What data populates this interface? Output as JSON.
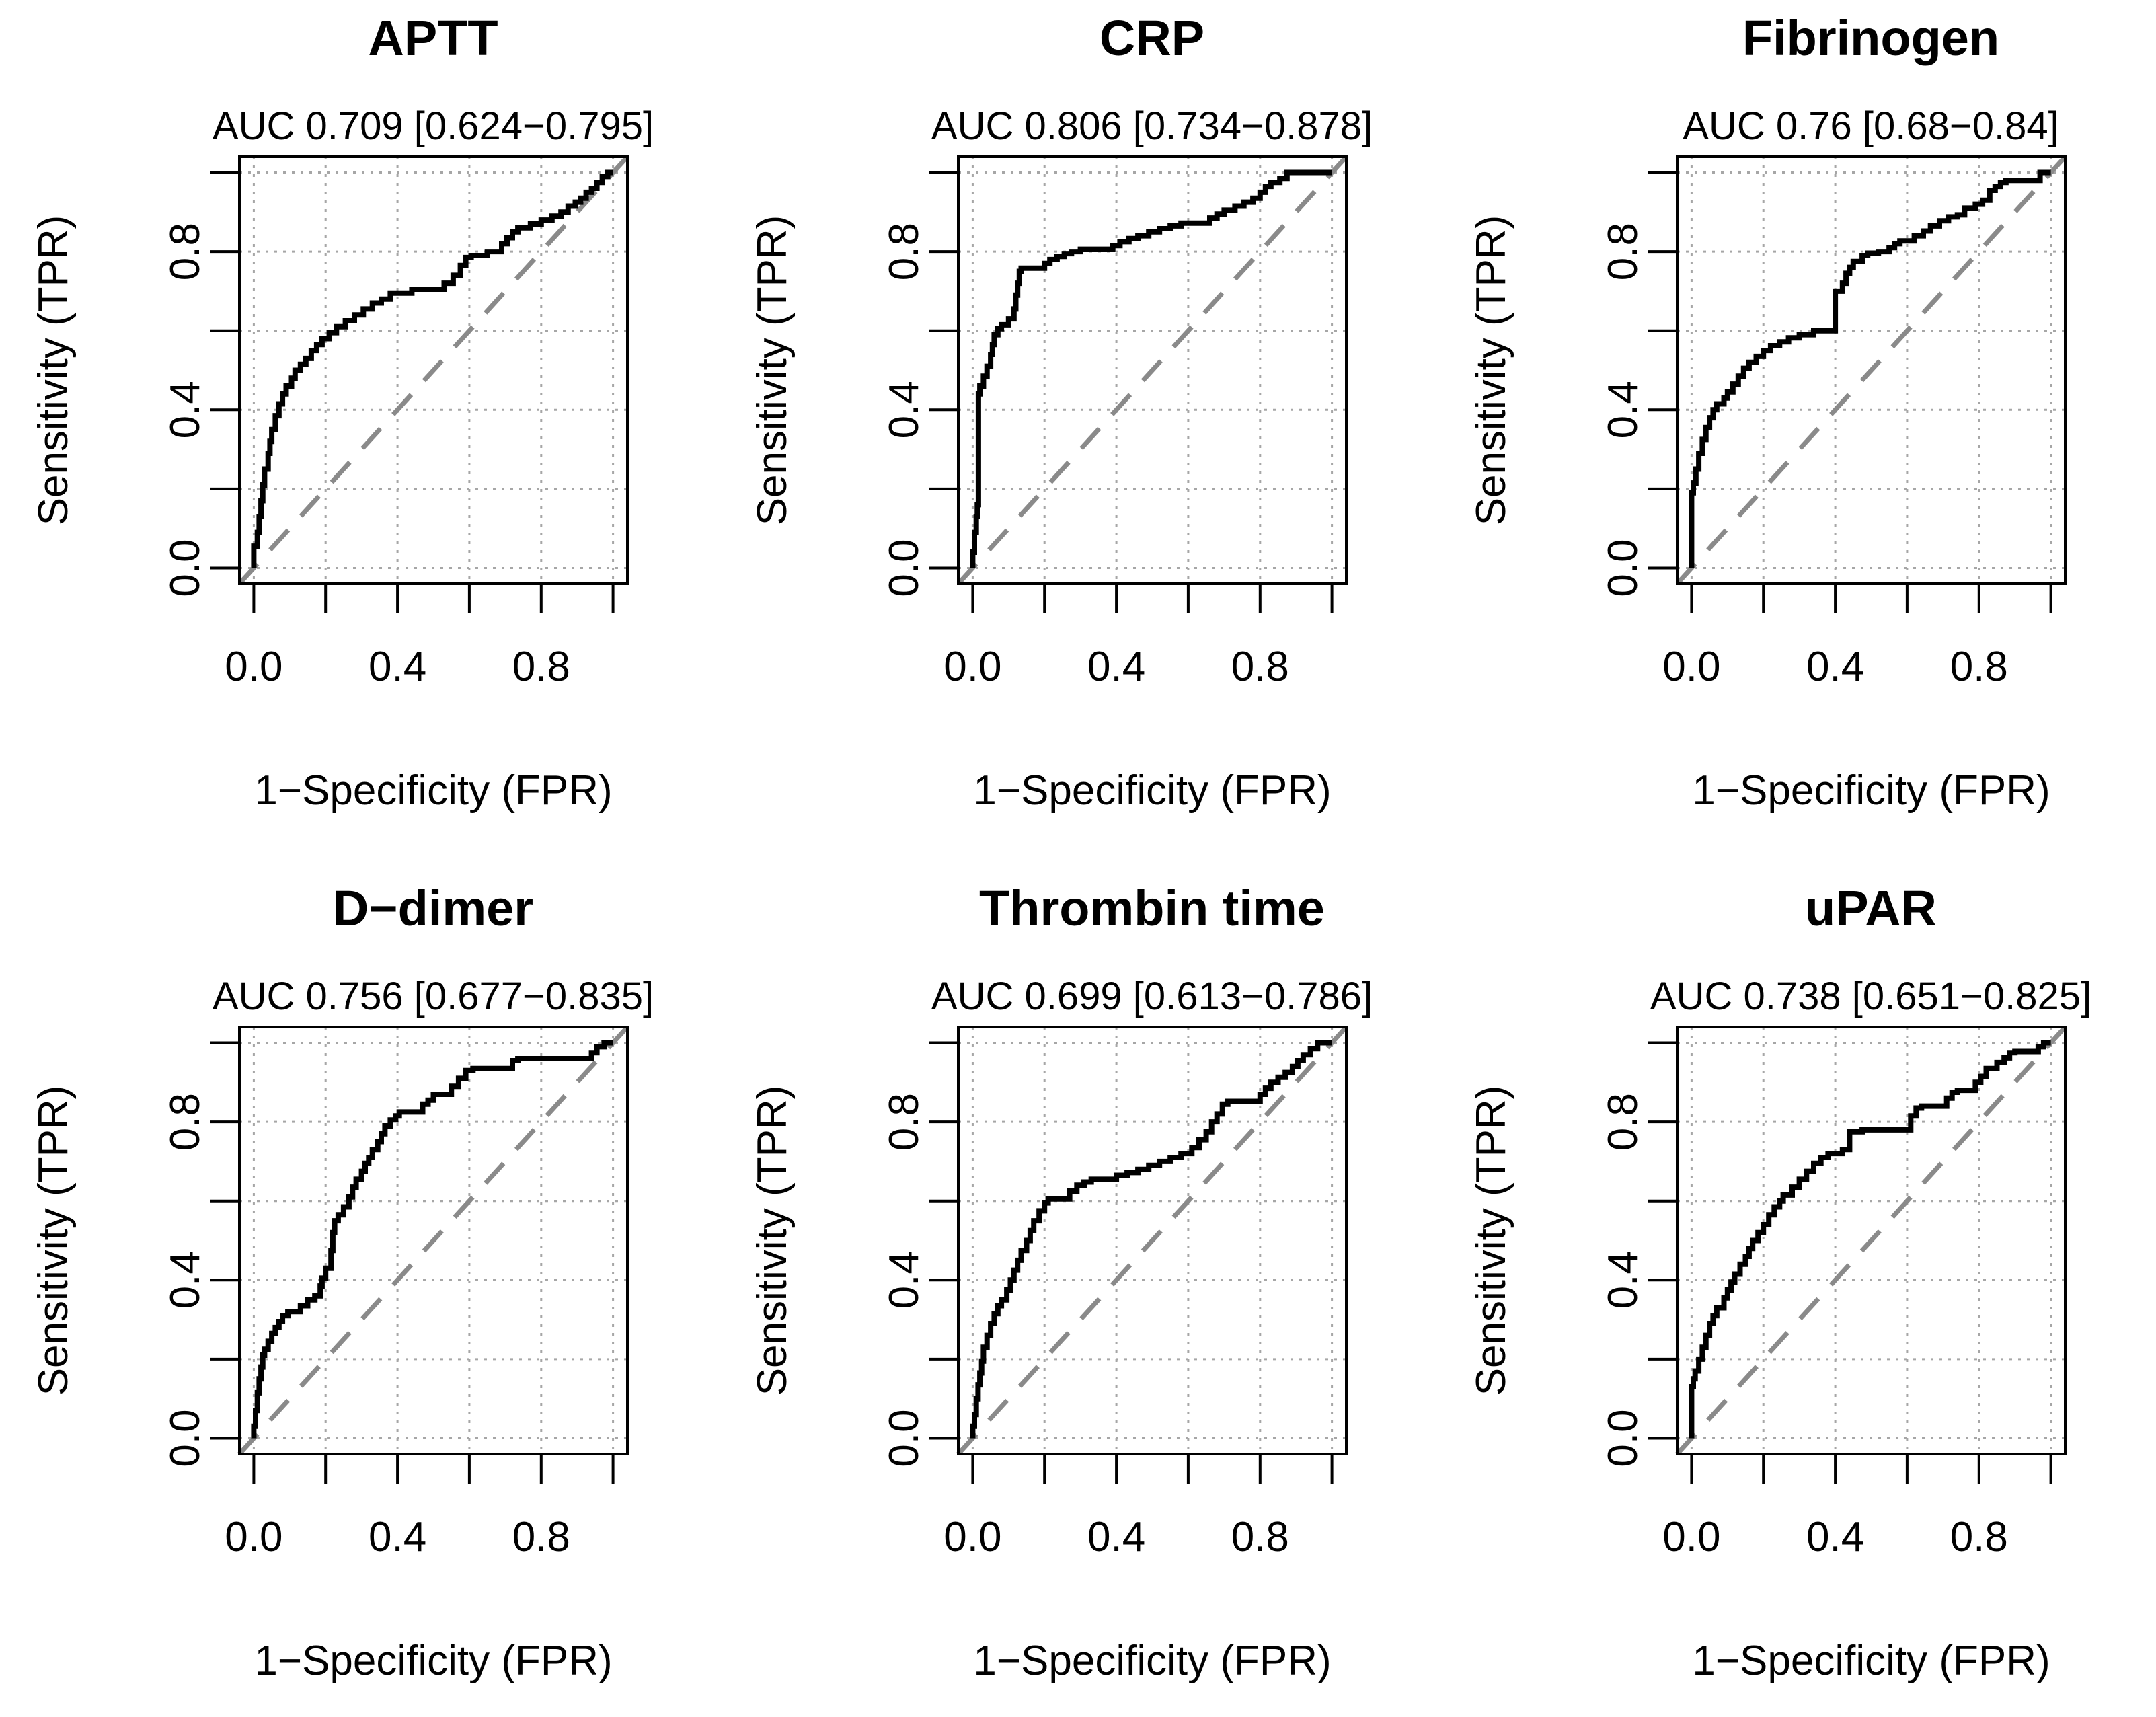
{
  "figure": {
    "background": "#ffffff",
    "rows": 2,
    "cols": 3
  },
  "colors": {
    "curve": "#000000",
    "diagonal": "#8a8a8a",
    "grid": "#a6a6a6",
    "text": "#000000"
  },
  "chart_data": [
    {
      "type": "line",
      "title": "APTT",
      "subtitle": "AUC 0.709 [0.624−0.795]",
      "auc": 0.709,
      "ci": [
        0.624,
        0.795
      ],
      "xlabel": "1−Specificity (FPR)",
      "ylabel": "Sensitivity (TPR)",
      "xlim": [
        0,
        1
      ],
      "ylim": [
        0,
        1
      ],
      "ticks": [
        0,
        0.2,
        0.4,
        0.6,
        0.8,
        1
      ],
      "tick_labels": {
        "values": [
          0,
          0.4,
          0.8
        ],
        "labels": [
          "0.0",
          "0.4",
          "0.8"
        ]
      },
      "grid": "dotted",
      "diagonal": "dashed",
      "roc": [
        [
          0,
          0
        ],
        [
          0.01,
          0.055
        ],
        [
          0.015,
          0.09
        ],
        [
          0.02,
          0.13
        ],
        [
          0.025,
          0.17
        ],
        [
          0.03,
          0.21
        ],
        [
          0.04,
          0.25
        ],
        [
          0.045,
          0.29
        ],
        [
          0.05,
          0.32
        ],
        [
          0.06,
          0.35
        ],
        [
          0.07,
          0.385
        ],
        [
          0.08,
          0.415
        ],
        [
          0.09,
          0.44
        ],
        [
          0.105,
          0.46
        ],
        [
          0.115,
          0.48
        ],
        [
          0.13,
          0.5
        ],
        [
          0.145,
          0.515
        ],
        [
          0.16,
          0.53
        ],
        [
          0.175,
          0.55
        ],
        [
          0.19,
          0.565
        ],
        [
          0.21,
          0.58
        ],
        [
          0.23,
          0.595
        ],
        [
          0.255,
          0.61
        ],
        [
          0.28,
          0.625
        ],
        [
          0.305,
          0.64
        ],
        [
          0.33,
          0.655
        ],
        [
          0.355,
          0.67
        ],
        [
          0.38,
          0.68
        ],
        [
          0.44,
          0.695
        ],
        [
          0.53,
          0.705
        ],
        [
          0.555,
          0.72
        ],
        [
          0.575,
          0.74
        ],
        [
          0.59,
          0.765
        ],
        [
          0.605,
          0.785
        ],
        [
          0.65,
          0.79
        ],
        [
          0.69,
          0.8
        ],
        [
          0.705,
          0.82
        ],
        [
          0.72,
          0.835
        ],
        [
          0.735,
          0.85
        ],
        [
          0.77,
          0.86
        ],
        [
          0.8,
          0.87
        ],
        [
          0.83,
          0.88
        ],
        [
          0.855,
          0.89
        ],
        [
          0.875,
          0.9
        ],
        [
          0.895,
          0.915
        ],
        [
          0.91,
          0.925
        ],
        [
          0.925,
          0.935
        ],
        [
          0.94,
          0.95
        ],
        [
          0.955,
          0.96
        ],
        [
          0.97,
          0.975
        ],
        [
          0.985,
          0.99
        ],
        [
          1,
          1
        ]
      ]
    },
    {
      "type": "line",
      "title": "CRP",
      "subtitle": "AUC 0.806 [0.734−0.878]",
      "auc": 0.806,
      "ci": [
        0.734,
        0.878
      ],
      "xlabel": "1−Specificity (FPR)",
      "ylabel": "Sensitivity (TPR)",
      "xlim": [
        0,
        1
      ],
      "ylim": [
        0,
        1
      ],
      "ticks": [
        0,
        0.2,
        0.4,
        0.6,
        0.8,
        1
      ],
      "tick_labels": {
        "values": [
          0,
          0.4,
          0.8
        ],
        "labels": [
          "0.0",
          "0.4",
          "0.8"
        ]
      },
      "grid": "dotted",
      "diagonal": "dashed",
      "roc": [
        [
          0,
          0
        ],
        [
          0.005,
          0.04
        ],
        [
          0.01,
          0.09
        ],
        [
          0.013,
          0.13
        ],
        [
          0.016,
          0.16
        ],
        [
          0.02,
          0.44
        ],
        [
          0.03,
          0.46
        ],
        [
          0.04,
          0.485
        ],
        [
          0.05,
          0.51
        ],
        [
          0.055,
          0.54
        ],
        [
          0.06,
          0.565
        ],
        [
          0.07,
          0.59
        ],
        [
          0.08,
          0.605
        ],
        [
          0.1,
          0.615
        ],
        [
          0.115,
          0.63
        ],
        [
          0.12,
          0.655
        ],
        [
          0.125,
          0.69
        ],
        [
          0.13,
          0.72
        ],
        [
          0.135,
          0.75
        ],
        [
          0.2,
          0.758
        ],
        [
          0.215,
          0.77
        ],
        [
          0.235,
          0.78
        ],
        [
          0.255,
          0.788
        ],
        [
          0.275,
          0.795
        ],
        [
          0.3,
          0.8
        ],
        [
          0.39,
          0.806
        ],
        [
          0.41,
          0.815
        ],
        [
          0.435,
          0.825
        ],
        [
          0.46,
          0.833
        ],
        [
          0.49,
          0.84
        ],
        [
          0.52,
          0.85
        ],
        [
          0.55,
          0.858
        ],
        [
          0.58,
          0.865
        ],
        [
          0.66,
          0.872
        ],
        [
          0.68,
          0.885
        ],
        [
          0.7,
          0.895
        ],
        [
          0.73,
          0.905
        ],
        [
          0.755,
          0.915
        ],
        [
          0.78,
          0.925
        ],
        [
          0.8,
          0.935
        ],
        [
          0.815,
          0.95
        ],
        [
          0.83,
          0.965
        ],
        [
          0.855,
          0.975
        ],
        [
          0.875,
          0.985
        ],
        [
          0.9,
          1
        ],
        [
          1,
          1
        ]
      ]
    },
    {
      "type": "line",
      "title": "Fibrinogen",
      "subtitle": "AUC 0.76 [0.68−0.84]",
      "auc": 0.76,
      "ci": [
        0.68,
        0.84
      ],
      "xlabel": "1−Specificity (FPR)",
      "ylabel": "Sensitivity (TPR)",
      "xlim": [
        0,
        1
      ],
      "ylim": [
        0,
        1
      ],
      "ticks": [
        0,
        0.2,
        0.4,
        0.6,
        0.8,
        1
      ],
      "tick_labels": {
        "values": [
          0,
          0.4,
          0.8
        ],
        "labels": [
          "0.0",
          "0.4",
          "0.8"
        ]
      },
      "grid": "dotted",
      "diagonal": "dashed",
      "roc": [
        [
          0,
          0
        ],
        [
          0.005,
          0.19
        ],
        [
          0.012,
          0.215
        ],
        [
          0.02,
          0.25
        ],
        [
          0.03,
          0.29
        ],
        [
          0.04,
          0.325
        ],
        [
          0.05,
          0.355
        ],
        [
          0.06,
          0.38
        ],
        [
          0.07,
          0.4
        ],
        [
          0.09,
          0.415
        ],
        [
          0.1,
          0.43
        ],
        [
          0.115,
          0.445
        ],
        [
          0.13,
          0.465
        ],
        [
          0.145,
          0.485
        ],
        [
          0.16,
          0.505
        ],
        [
          0.18,
          0.52
        ],
        [
          0.2,
          0.535
        ],
        [
          0.22,
          0.55
        ],
        [
          0.245,
          0.562
        ],
        [
          0.27,
          0.572
        ],
        [
          0.3,
          0.582
        ],
        [
          0.34,
          0.59
        ],
        [
          0.4,
          0.6
        ],
        [
          0.42,
          0.7
        ],
        [
          0.43,
          0.72
        ],
        [
          0.44,
          0.745
        ],
        [
          0.45,
          0.76
        ],
        [
          0.475,
          0.775
        ],
        [
          0.49,
          0.79
        ],
        [
          0.52,
          0.796
        ],
        [
          0.55,
          0.8
        ],
        [
          0.565,
          0.81
        ],
        [
          0.58,
          0.82
        ],
        [
          0.62,
          0.827
        ],
        [
          0.645,
          0.84
        ],
        [
          0.665,
          0.852
        ],
        [
          0.69,
          0.865
        ],
        [
          0.715,
          0.878
        ],
        [
          0.74,
          0.888
        ],
        [
          0.76,
          0.893
        ],
        [
          0.79,
          0.91
        ],
        [
          0.81,
          0.92
        ],
        [
          0.83,
          0.93
        ],
        [
          0.845,
          0.955
        ],
        [
          0.86,
          0.965
        ],
        [
          0.875,
          0.975
        ],
        [
          0.97,
          0.98
        ],
        [
          0.985,
          1
        ],
        [
          1,
          1
        ]
      ]
    },
    {
      "type": "line",
      "title": "D−dimer",
      "subtitle": "AUC 0.756 [0.677−0.835]",
      "auc": 0.756,
      "ci": [
        0.677,
        0.835
      ],
      "xlabel": "1−Specificity (FPR)",
      "ylabel": "Sensitivity (TPR)",
      "xlim": [
        0,
        1
      ],
      "ylim": [
        0,
        1
      ],
      "ticks": [
        0,
        0.2,
        0.4,
        0.6,
        0.8,
        1
      ],
      "tick_labels": {
        "values": [
          0,
          0.4,
          0.8
        ],
        "labels": [
          "0.0",
          "0.4",
          "0.8"
        ]
      },
      "grid": "dotted",
      "diagonal": "dashed",
      "roc": [
        [
          0,
          0
        ],
        [
          0.005,
          0.03
        ],
        [
          0.01,
          0.07
        ],
        [
          0.015,
          0.115
        ],
        [
          0.02,
          0.15
        ],
        [
          0.025,
          0.18
        ],
        [
          0.03,
          0.21
        ],
        [
          0.04,
          0.225
        ],
        [
          0.05,
          0.245
        ],
        [
          0.06,
          0.265
        ],
        [
          0.07,
          0.28
        ],
        [
          0.08,
          0.295
        ],
        [
          0.095,
          0.31
        ],
        [
          0.13,
          0.32
        ],
        [
          0.15,
          0.335
        ],
        [
          0.17,
          0.35
        ],
        [
          0.185,
          0.36
        ],
        [
          0.19,
          0.385
        ],
        [
          0.2,
          0.405
        ],
        [
          0.215,
          0.43
        ],
        [
          0.22,
          0.475
        ],
        [
          0.225,
          0.52
        ],
        [
          0.235,
          0.55
        ],
        [
          0.25,
          0.565
        ],
        [
          0.265,
          0.585
        ],
        [
          0.275,
          0.61
        ],
        [
          0.285,
          0.635
        ],
        [
          0.3,
          0.655
        ],
        [
          0.31,
          0.675
        ],
        [
          0.32,
          0.695
        ],
        [
          0.33,
          0.71
        ],
        [
          0.345,
          0.73
        ],
        [
          0.355,
          0.75
        ],
        [
          0.365,
          0.77
        ],
        [
          0.38,
          0.79
        ],
        [
          0.395,
          0.805
        ],
        [
          0.405,
          0.815
        ],
        [
          0.47,
          0.825
        ],
        [
          0.485,
          0.845
        ],
        [
          0.5,
          0.855
        ],
        [
          0.55,
          0.87
        ],
        [
          0.57,
          0.89
        ],
        [
          0.59,
          0.91
        ],
        [
          0.61,
          0.93
        ],
        [
          0.72,
          0.935
        ],
        [
          0.735,
          0.955
        ],
        [
          0.94,
          0.96
        ],
        [
          0.955,
          0.975
        ],
        [
          0.975,
          0.99
        ],
        [
          1,
          1
        ]
      ]
    },
    {
      "type": "line",
      "title": "Thrombin time",
      "subtitle": "AUC 0.699 [0.613−0.786]",
      "auc": 0.699,
      "ci": [
        0.613,
        0.786
      ],
      "xlabel": "1−Specificity (FPR)",
      "ylabel": "Sensitivity (TPR)",
      "xlim": [
        0,
        1
      ],
      "ylim": [
        0,
        1
      ],
      "ticks": [
        0,
        0.2,
        0.4,
        0.6,
        0.8,
        1
      ],
      "tick_labels": {
        "values": [
          0,
          0.4,
          0.8
        ],
        "labels": [
          "0.0",
          "0.4",
          "0.8"
        ]
      },
      "grid": "dotted",
      "diagonal": "dashed",
      "roc": [
        [
          0,
          0
        ],
        [
          0.005,
          0.03
        ],
        [
          0.01,
          0.06
        ],
        [
          0.015,
          0.1
        ],
        [
          0.02,
          0.135
        ],
        [
          0.025,
          0.165
        ],
        [
          0.03,
          0.195
        ],
        [
          0.04,
          0.23
        ],
        [
          0.05,
          0.26
        ],
        [
          0.06,
          0.29
        ],
        [
          0.07,
          0.315
        ],
        [
          0.08,
          0.335
        ],
        [
          0.095,
          0.35
        ],
        [
          0.105,
          0.375
        ],
        [
          0.115,
          0.4
        ],
        [
          0.125,
          0.425
        ],
        [
          0.135,
          0.45
        ],
        [
          0.15,
          0.475
        ],
        [
          0.16,
          0.5
        ],
        [
          0.17,
          0.525
        ],
        [
          0.185,
          0.55
        ],
        [
          0.2,
          0.575
        ],
        [
          0.21,
          0.595
        ],
        [
          0.27,
          0.605
        ],
        [
          0.29,
          0.625
        ],
        [
          0.31,
          0.64
        ],
        [
          0.33,
          0.648
        ],
        [
          0.4,
          0.655
        ],
        [
          0.43,
          0.665
        ],
        [
          0.46,
          0.672
        ],
        [
          0.49,
          0.68
        ],
        [
          0.52,
          0.69
        ],
        [
          0.55,
          0.7
        ],
        [
          0.58,
          0.71
        ],
        [
          0.61,
          0.72
        ],
        [
          0.63,
          0.735
        ],
        [
          0.65,
          0.755
        ],
        [
          0.665,
          0.775
        ],
        [
          0.68,
          0.8
        ],
        [
          0.695,
          0.82
        ],
        [
          0.71,
          0.845
        ],
        [
          0.8,
          0.852
        ],
        [
          0.815,
          0.87
        ],
        [
          0.83,
          0.885
        ],
        [
          0.85,
          0.9
        ],
        [
          0.87,
          0.913
        ],
        [
          0.89,
          0.925
        ],
        [
          0.905,
          0.94
        ],
        [
          0.92,
          0.955
        ],
        [
          0.94,
          0.97
        ],
        [
          0.96,
          0.985
        ],
        [
          1,
          1
        ]
      ]
    },
    {
      "type": "line",
      "title": "uPAR",
      "subtitle": "AUC 0.738 [0.651−0.825]",
      "auc": 0.738,
      "ci": [
        0.651,
        0.825
      ],
      "xlabel": "1−Specificity (FPR)",
      "ylabel": "Sensitivity (TPR)",
      "xlim": [
        0,
        1
      ],
      "ylim": [
        0,
        1
      ],
      "ticks": [
        0,
        0.2,
        0.4,
        0.6,
        0.8,
        1
      ],
      "tick_labels": {
        "values": [
          0,
          0.4,
          0.8
        ],
        "labels": [
          "0.0",
          "0.4",
          "0.8"
        ]
      },
      "grid": "dotted",
      "diagonal": "dashed",
      "roc": [
        [
          0,
          0
        ],
        [
          0.005,
          0.13
        ],
        [
          0.01,
          0.15
        ],
        [
          0.02,
          0.17
        ],
        [
          0.03,
          0.2
        ],
        [
          0.04,
          0.23
        ],
        [
          0.05,
          0.26
        ],
        [
          0.06,
          0.29
        ],
        [
          0.07,
          0.31
        ],
        [
          0.09,
          0.33
        ],
        [
          0.1,
          0.355
        ],
        [
          0.11,
          0.375
        ],
        [
          0.12,
          0.395
        ],
        [
          0.135,
          0.415
        ],
        [
          0.15,
          0.44
        ],
        [
          0.16,
          0.46
        ],
        [
          0.17,
          0.48
        ],
        [
          0.185,
          0.5
        ],
        [
          0.2,
          0.52
        ],
        [
          0.215,
          0.54
        ],
        [
          0.23,
          0.565
        ],
        [
          0.245,
          0.585
        ],
        [
          0.255,
          0.6
        ],
        [
          0.28,
          0.615
        ],
        [
          0.3,
          0.635
        ],
        [
          0.32,
          0.655
        ],
        [
          0.34,
          0.675
        ],
        [
          0.36,
          0.695
        ],
        [
          0.38,
          0.71
        ],
        [
          0.42,
          0.72
        ],
        [
          0.44,
          0.73
        ],
        [
          0.475,
          0.775
        ],
        [
          0.61,
          0.78
        ],
        [
          0.625,
          0.815
        ],
        [
          0.64,
          0.835
        ],
        [
          0.71,
          0.84
        ],
        [
          0.725,
          0.86
        ],
        [
          0.74,
          0.875
        ],
        [
          0.79,
          0.88
        ],
        [
          0.805,
          0.9
        ],
        [
          0.82,
          0.915
        ],
        [
          0.85,
          0.935
        ],
        [
          0.87,
          0.95
        ],
        [
          0.885,
          0.962
        ],
        [
          0.9,
          0.975
        ],
        [
          0.965,
          0.978
        ],
        [
          0.98,
          0.99
        ],
        [
          1,
          1
        ]
      ]
    }
  ]
}
